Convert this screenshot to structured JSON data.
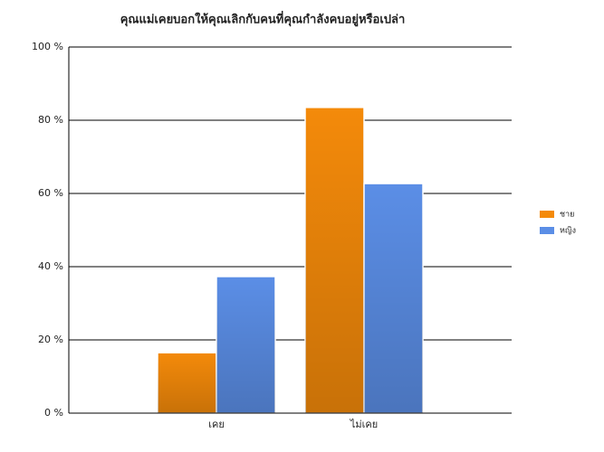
{
  "chart_data": {
    "type": "bar",
    "title": "คุณแม่เคยบอกให้คุณเลิกกับคนที่คุณกำลังคบอยู่หรือเปล่า",
    "categories": [
      "เคย",
      "ไม่เคย"
    ],
    "series": [
      {
        "name": "ชาย",
        "color": "#f48a0a",
        "values": [
          16.5,
          83.5
        ]
      },
      {
        "name": "หญิง",
        "color": "#5b8ee6",
        "values": [
          37.3,
          62.7
        ]
      }
    ],
    "ylim": [
      0,
      100
    ],
    "yticks": [
      {
        "value": 0,
        "label": "0 %"
      },
      {
        "value": 20,
        "label": "20 %"
      },
      {
        "value": 40,
        "label": "40 %"
      },
      {
        "value": 60,
        "label": "60 %"
      },
      {
        "value": 80,
        "label": "80 %"
      },
      {
        "value": 100,
        "label": "100 %"
      }
    ],
    "grid": true,
    "legend": "right"
  }
}
